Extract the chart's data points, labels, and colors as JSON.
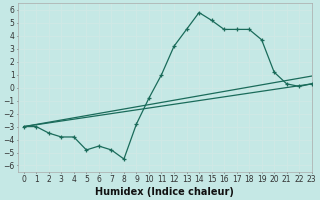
{
  "xlabel": "Humidex (Indice chaleur)",
  "background_color": "#c5e8e5",
  "grid_color": "#d0e8e5",
  "line_color": "#1a6b5a",
  "xlim": [
    -0.5,
    23
  ],
  "ylim": [
    -6.5,
    6.5
  ],
  "xticks": [
    0,
    1,
    2,
    3,
    4,
    5,
    6,
    7,
    8,
    9,
    10,
    11,
    12,
    13,
    14,
    15,
    16,
    17,
    18,
    19,
    20,
    21,
    22,
    23
  ],
  "yticks": [
    -6,
    -5,
    -4,
    -3,
    -2,
    -1,
    0,
    1,
    2,
    3,
    4,
    5,
    6
  ],
  "line1_x": [
    0,
    1,
    2,
    3,
    4,
    5,
    6,
    7,
    8,
    9,
    10,
    11,
    12,
    13,
    14,
    15,
    16,
    17,
    18,
    19,
    20,
    21,
    22,
    23
  ],
  "line1_y": [
    -3.0,
    -3.0,
    -3.5,
    -3.8,
    -3.8,
    -4.8,
    -4.5,
    -4.8,
    -5.5,
    -2.8,
    -0.8,
    1.0,
    3.2,
    4.5,
    5.8,
    5.2,
    4.5,
    4.5,
    4.5,
    3.7,
    1.2,
    0.3,
    0.1,
    0.3
  ],
  "line2_x": [
    0,
    23
  ],
  "line2_y": [
    -3.0,
    0.3
  ],
  "line3_x": [
    0,
    23
  ],
  "line3_y": [
    -3.0,
    0.9
  ],
  "xlabel_fontsize": 7,
  "tick_fontsize": 5.5
}
